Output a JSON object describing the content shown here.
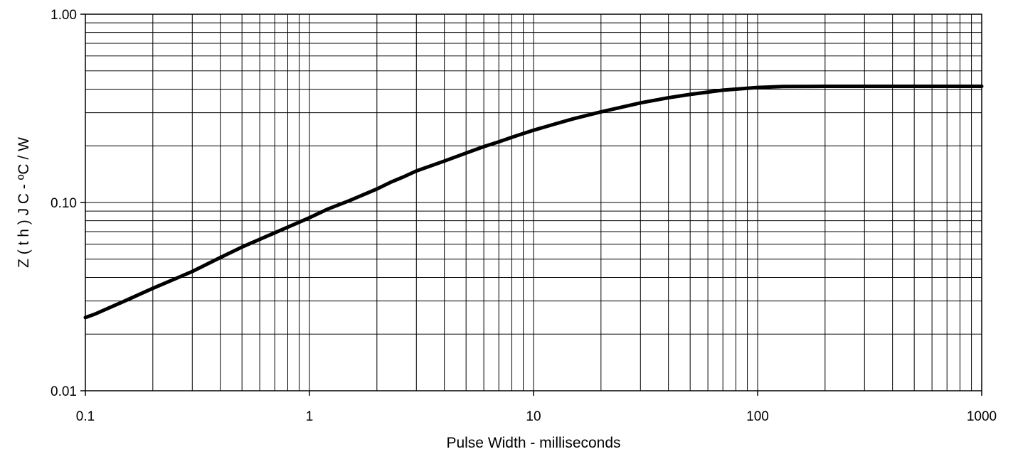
{
  "chart_data": {
    "type": "line",
    "title": "",
    "xlabel": "Pulse Width - milliseconds",
    "ylabel": "Z ( t h ) J C - ºC / W",
    "x_scale": "log",
    "y_scale": "log",
    "xlim": [
      0.1,
      1000
    ],
    "ylim": [
      0.01,
      1.0
    ],
    "grid": true,
    "legend": "none",
    "line_color": "#000000",
    "x_ticks": [
      {
        "value": 0.1,
        "label": "0.1"
      },
      {
        "value": 1,
        "label": "1"
      },
      {
        "value": 10,
        "label": "10"
      },
      {
        "value": 100,
        "label": "100"
      },
      {
        "value": 1000,
        "label": "1000"
      }
    ],
    "y_ticks": [
      {
        "value": 0.01,
        "label": "0.01"
      },
      {
        "value": 0.1,
        "label": "0.10"
      },
      {
        "value": 1.0,
        "label": "1.00"
      }
    ],
    "series": [
      {
        "x": [
          0.1,
          0.11,
          0.15,
          0.2,
          0.3,
          0.4,
          0.5,
          0.7,
          1,
          1.2,
          1.5,
          2,
          2.3,
          2.6,
          3,
          4,
          5,
          6,
          7,
          8,
          10,
          13,
          15,
          20,
          30,
          40,
          50,
          70,
          100,
          130,
          200,
          500,
          1000
        ],
        "y": [
          0.0245,
          0.0255,
          0.03,
          0.035,
          0.043,
          0.051,
          0.058,
          0.069,
          0.083,
          0.092,
          0.102,
          0.118,
          0.128,
          0.136,
          0.147,
          0.166,
          0.183,
          0.198,
          0.21,
          0.222,
          0.242,
          0.265,
          0.278,
          0.303,
          0.338,
          0.36,
          0.375,
          0.395,
          0.408,
          0.413,
          0.414,
          0.414,
          0.414
        ]
      }
    ]
  }
}
